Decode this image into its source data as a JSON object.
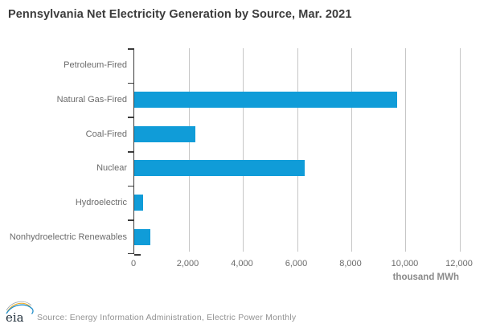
{
  "title": "Pennsylvania Net Electricity Generation by Source, Mar. 2021",
  "chart_data": {
    "type": "bar",
    "orientation": "horizontal",
    "title": "Pennsylvania Net Electricity Generation by Source, Mar. 2021",
    "categories": [
      "Petroleum-Fired",
      "Natural Gas-Fired",
      "Coal-Fired",
      "Nuclear",
      "Hydroelectric",
      "Nonhydroelectric Renewables"
    ],
    "values": [
      0,
      9700,
      2250,
      6280,
      330,
      590
    ],
    "xlabel": "thousand MWh",
    "ylabel": "",
    "x_ticks": [
      "0",
      "2,000",
      "4,000",
      "6,000",
      "8,000",
      "10,000",
      "12,000"
    ],
    "xlim": [
      0,
      12000
    ],
    "grid": "vertical-only",
    "legend": "none",
    "bar_color": "#109cd8"
  },
  "footer": {
    "logo_text": "eia",
    "source": "Source: Energy Information Administration, Electric Power Monthly"
  }
}
